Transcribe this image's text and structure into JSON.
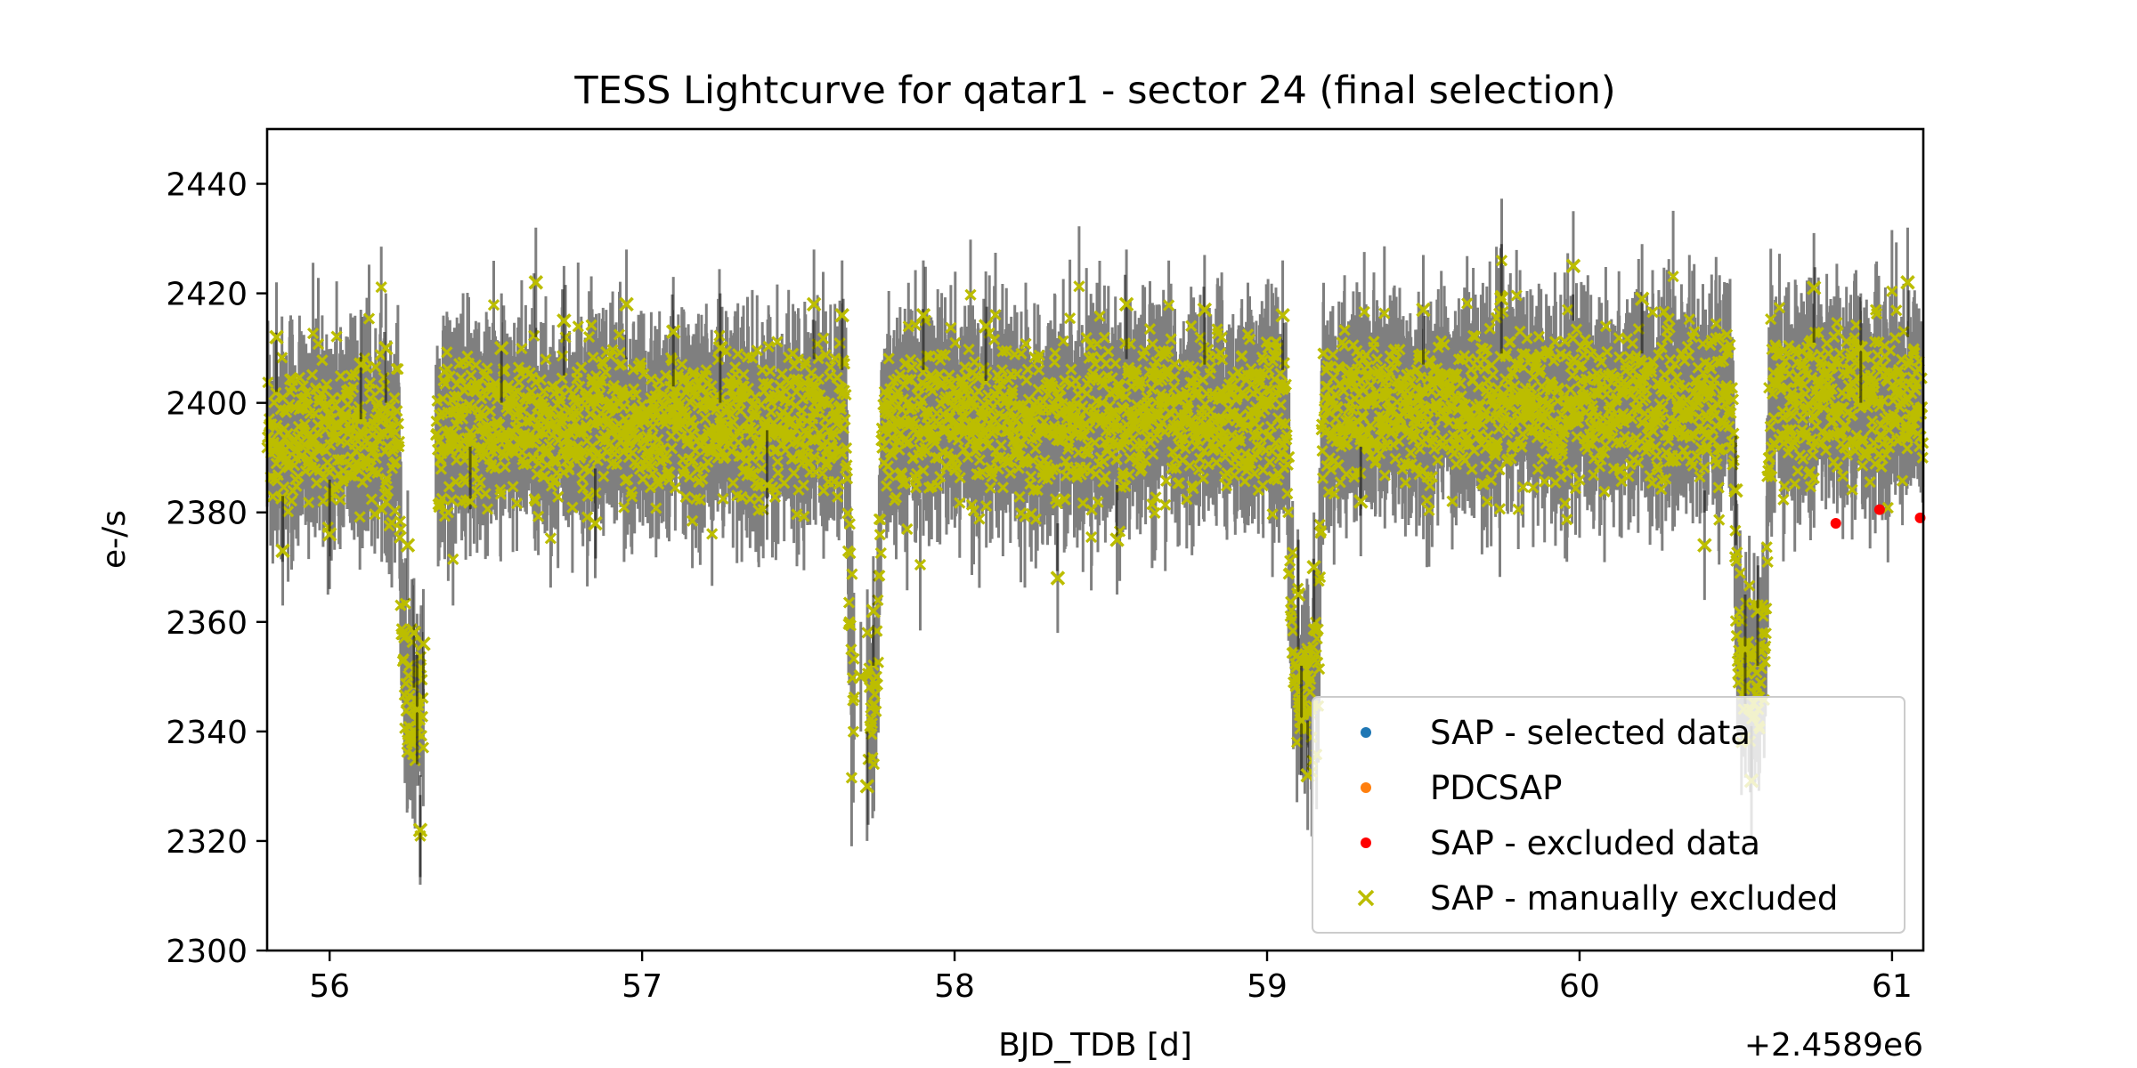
{
  "chart_data": {
    "type": "scatter",
    "title": "TESS Lightcurve for qatar1 - sector 24 (final selection)",
    "xlabel": "BJD_TDB [d]",
    "ylabel": "e-/s",
    "x_offset_label": "+2.4589e6",
    "xlim": [
      55.8,
      61.1
    ],
    "ylim": [
      2300,
      2450
    ],
    "xticks": [
      56,
      57,
      58,
      59,
      60,
      61
    ],
    "yticks": [
      2300,
      2320,
      2340,
      2360,
      2380,
      2400,
      2420,
      2440
    ],
    "grid": false,
    "legend_position": "lower-right",
    "baseline_flux": {
      "start": 2394,
      "end": 2401
    },
    "flux_scatter": 7,
    "typical_error": 10,
    "cadence_days": 0.0014,
    "transit_depth": 50,
    "transit_half_width_days": 0.06,
    "transits": [
      56.28,
      57.71,
      59.12,
      60.55
    ],
    "data_gaps": [
      {
        "start": 56.3,
        "end": 56.34
      },
      {
        "start": 57.68,
        "end": 57.72
      }
    ],
    "series": [
      {
        "name": "SAP - selected data",
        "marker": "dot",
        "color": "#1f77b4",
        "values": []
      },
      {
        "name": "PDCSAP",
        "marker": "dot",
        "color": "#ff7f0e",
        "values": []
      },
      {
        "name": "SAP - excluded data",
        "marker": "dot",
        "color": "#ff0000",
        "points": [
          [
            60.82,
            2378
          ],
          [
            60.96,
            2380.5
          ],
          [
            61.09,
            2379
          ]
        ]
      },
      {
        "name": "SAP - manually excluded",
        "marker": "x",
        "color": "#bcbd00",
        "points": [
          [
            55.83,
            2412
          ],
          [
            55.85,
            2373
          ],
          [
            56.0,
            2376
          ],
          [
            56.1,
            2407
          ],
          [
            56.18,
            2410
          ],
          [
            56.25,
            2374
          ],
          [
            56.27,
            2358
          ],
          [
            56.28,
            2344
          ],
          [
            56.29,
            2322
          ],
          [
            56.3,
            2356
          ],
          [
            56.45,
            2382
          ],
          [
            56.55,
            2410
          ],
          [
            56.66,
            2422
          ],
          [
            56.75,
            2415
          ],
          [
            56.85,
            2378
          ],
          [
            56.95,
            2418
          ],
          [
            57.1,
            2413
          ],
          [
            57.25,
            2410
          ],
          [
            57.4,
            2385
          ],
          [
            57.55,
            2418
          ],
          [
            57.64,
            2416
          ],
          [
            57.7,
            2350
          ],
          [
            57.72,
            2330
          ],
          [
            57.74,
            2362
          ],
          [
            57.9,
            2416
          ],
          [
            58.1,
            2414
          ],
          [
            58.33,
            2368
          ],
          [
            58.52,
            2375
          ],
          [
            58.55,
            2418
          ],
          [
            58.8,
            2417
          ],
          [
            59.05,
            2416
          ],
          [
            59.1,
            2365
          ],
          [
            59.11,
            2342
          ],
          [
            59.13,
            2332
          ],
          [
            59.15,
            2370
          ],
          [
            59.3,
            2382
          ],
          [
            59.5,
            2417
          ],
          [
            59.75,
            2419
          ],
          [
            59.98,
            2425
          ],
          [
            60.2,
            2419
          ],
          [
            60.4,
            2374
          ],
          [
            60.5,
            2384
          ],
          [
            60.53,
            2355
          ],
          [
            60.55,
            2331
          ],
          [
            60.57,
            2362
          ],
          [
            60.75,
            2421
          ],
          [
            60.9,
            2410
          ],
          [
            61.05,
            2422
          ]
        ]
      }
    ]
  }
}
